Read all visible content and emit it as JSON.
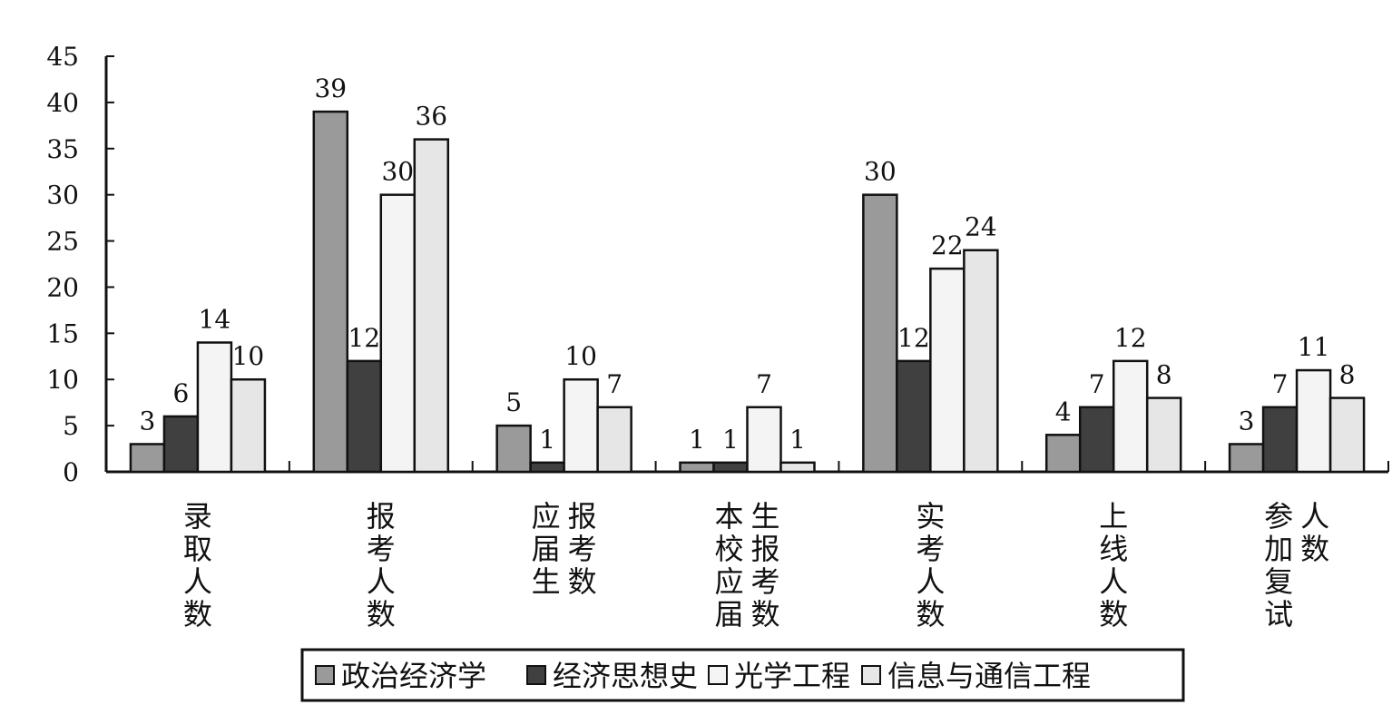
{
  "chart_data": {
    "type": "bar",
    "categories": [
      "录取人数",
      "报考人数",
      "应届生报考数",
      "本校应届生报考数",
      "实考人数",
      "上线人数",
      "参加复试人数"
    ],
    "category_label_columns": [
      [
        "录取人数"
      ],
      [
        "报考人数"
      ],
      [
        "应届生",
        "报考数"
      ],
      [
        "本校应届",
        "生报考数"
      ],
      [
        "实考人数"
      ],
      [
        "上线人数"
      ],
      [
        "参加复试",
        "人数"
      ]
    ],
    "series": [
      {
        "name": "政治经济学",
        "values": [
          3,
          39,
          5,
          1,
          30,
          4,
          3
        ],
        "color": "#9a9a9a"
      },
      {
        "name": "经济思想史",
        "values": [
          6,
          12,
          1,
          1,
          12,
          7,
          7
        ],
        "color": "#404040"
      },
      {
        "name": "光学工程",
        "values": [
          14,
          30,
          10,
          7,
          22,
          12,
          11
        ],
        "color": "#f4f4f4"
      },
      {
        "name": "信息与通信工程",
        "values": [
          10,
          36,
          7,
          1,
          24,
          8,
          8
        ],
        "color": "#e6e6e6"
      }
    ],
    "y_ticks": [
      0,
      5,
      10,
      15,
      20,
      25,
      30,
      35,
      40,
      45
    ],
    "ylim": [
      0,
      45
    ],
    "grid": false,
    "legend_position": "bottom-center",
    "title": "",
    "xlabel": "",
    "ylabel": ""
  }
}
